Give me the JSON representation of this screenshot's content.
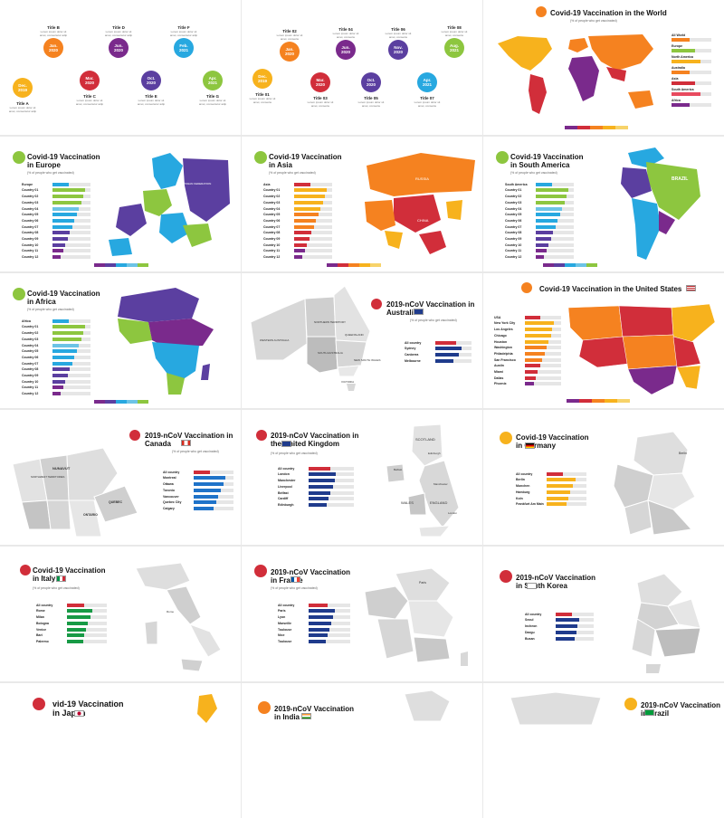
{
  "timeline1": {
    "nodes": [
      {
        "label": "Dec.\n2019",
        "color": "#f7b21d",
        "title": "Title A",
        "desc": "Lorem ipsum dolor sit\namet, consectetur adip"
      },
      {
        "label": "Jan.\n2020",
        "color": "#f58220",
        "title": "Title B",
        "desc": "Lorem ipsum dolor sit\namet, consectetur adip"
      },
      {
        "label": "Mar.\n2020",
        "color": "#d12e3a",
        "title": "Title C",
        "desc": "Lorem ipsum dolor sit\namet, consectetur adip"
      },
      {
        "label": "Jun.\n2020",
        "color": "#7a2a8c",
        "title": "Title D",
        "desc": "Lorem ipsum dolor sit\namet, consectetur adip"
      },
      {
        "label": "Oct.\n2020",
        "color": "#5b3fa0",
        "title": "Title E",
        "desc": "Lorem ipsum dolor sit\namet, consectetur adip"
      },
      {
        "label": "Feb.\n2021",
        "color": "#27a8e0",
        "title": "Title F",
        "desc": "Lorem ipsum dolor sit\namet, consectetur adip"
      },
      {
        "label": "Apr.\n2021",
        "color": "#8dc63f",
        "title": "Title G",
        "desc": "Lorem ipsum dolor sit\namet, consectetur adip"
      }
    ]
  },
  "timeline2": {
    "nodes": [
      {
        "label": "Dec.\n2019",
        "color": "#f7b21d",
        "title": "Title 01",
        "desc": "Lorem ipsum dolor sit\namet, consecte"
      },
      {
        "label": "Jan.\n2020",
        "color": "#f58220",
        "title": "Title 02",
        "desc": "Lorem ipsum dolor sit\namet, consecte"
      },
      {
        "label": "Mar.\n2020",
        "color": "#d12e3a",
        "title": "Title 03",
        "desc": "Lorem ipsum dolor sit\namet, consecte"
      },
      {
        "label": "Jun.\n2020",
        "color": "#7a2a8c",
        "title": "Title 04",
        "desc": "Lorem ipsum dolor sit\namet, consecte"
      },
      {
        "label": "Oct.\n2020",
        "color": "#5b3fa0",
        "title": "Title 05",
        "desc": "Lorem ipsum dolor sit\namet, consecte"
      },
      {
        "label": "Nov.\n2020",
        "color": "#5b3fa0",
        "title": "Title 06",
        "desc": "Lorem ipsum dolor sit\namet, consecte"
      },
      {
        "label": "Apr.\n2021",
        "color": "#27a8e0",
        "title": "Title 07",
        "desc": "Lorem ipsum dolor sit\namet, consecte"
      },
      {
        "label": "Aug.\n2021",
        "color": "#8dc63f",
        "title": "Title 08",
        "desc": "Lorem ipsum dolor sit\namet, consecte"
      }
    ]
  },
  "world": {
    "title": "Covid-19 Vaccination in the World",
    "subtitle": "(% of people who get vaccinated)",
    "regions": [
      "All World",
      "Europe",
      "North America",
      "Australia",
      "Asia",
      "South America",
      "Africa"
    ],
    "region_colors": [
      "#f58220",
      "#8dc63f",
      "#f7b21d",
      "#f58220",
      "#d12e3a",
      "#e84a5f",
      "#7a2a8c"
    ],
    "legend": [
      "0 - 25",
      "25 - 50",
      "50 - 75",
      "75 - 85"
    ]
  },
  "europe": {
    "title": "Covid-19 Vaccination\nin Europe",
    "subtitle": "(% of people who get vaccinated)",
    "rows": [
      "Europe",
      "Country 01",
      "Country 02",
      "Country 03",
      "Country 04",
      "Country 05",
      "Country 06",
      "Country 07",
      "Country 08",
      "Country 09",
      "Country 10",
      "Country 11",
      "Country 12"
    ],
    "map_labels": [
      "RUSSIAN FEDERATION"
    ]
  },
  "asia": {
    "title": "Covid-19 Vaccination\nin Asia",
    "subtitle": "(% of people who get vaccinated)",
    "rows": [
      "Asia",
      "Country 01",
      "Country 02",
      "Country 03",
      "Country 04",
      "Country 05",
      "Country 06",
      "Country 07",
      "Country 08",
      "Country 09",
      "Country 10",
      "Country 11",
      "Country 12"
    ],
    "map_labels": [
      "RUSSIA",
      "CHINA"
    ]
  },
  "south_america": {
    "title": "Covid-19 Vaccination\nin South America",
    "subtitle": "(% of people who get vaccinated)",
    "rows": [
      "South America",
      "Country 01",
      "Country 02",
      "Country 03",
      "Country 04",
      "Country 05",
      "Country 06",
      "Country 07",
      "Country 08",
      "Country 09",
      "Country 10",
      "Country 11",
      "Country 12"
    ],
    "map_labels": [
      "BRAZIL"
    ]
  },
  "africa": {
    "title": "Covid-19 Vaccination\nin Africa",
    "subtitle": "(% of people who get vaccinated)",
    "rows": [
      "Africa",
      "Country 01",
      "Country 02",
      "Country 03",
      "Country 04",
      "Country 05",
      "Country 06",
      "Country 07",
      "Country 08",
      "Country 09",
      "Country 10",
      "Country 11",
      "Country 12"
    ]
  },
  "australia": {
    "title": "2019-nCoV Vaccination in\nAustralia",
    "subtitle": "(% of people who get vaccinated)",
    "rows": [
      "All country",
      "Sydney",
      "Canberra",
      "Melbourne"
    ],
    "map_labels": [
      "NORTHERN TERRITORY",
      "QUEENSLAND",
      "WESTERN AUSTRALIA",
      "SOUTH AUSTRALIA",
      "NEW SOUTH WALES",
      "VICTORIA"
    ]
  },
  "usa": {
    "title": "Covid-19 Vaccination in the United States",
    "rows": [
      "USA",
      "New York City",
      "Los Angeles",
      "Chicago",
      "Houston",
      "Washington",
      "Philadelphia",
      "San Francisco",
      "Austin",
      "Miami",
      "Dallas",
      "Phoenix"
    ]
  },
  "canada": {
    "title": "2019-nCoV Vaccination in\nCanada",
    "subtitle": "(% of people who get vaccinated)",
    "rows": [
      "All country",
      "Montreal",
      "Ottawa",
      "Toronto",
      "Vancouver",
      "Quebec City",
      "Calgary"
    ],
    "map_labels": [
      "NUNAVUT",
      "NORTHWEST TERRITORIES",
      "ONTARIO",
      "QUEBEC"
    ]
  },
  "uk": {
    "title": "2019-nCoV Vaccination in\nthe United Kingdom",
    "subtitle": "(% of people who get vaccinated)",
    "rows": [
      "All country",
      "London",
      "Manchester",
      "Liverpool",
      "Belfast",
      "Cardiff",
      "Edinburgh"
    ],
    "map_labels": [
      "SCOTLAND",
      "Edinburgh",
      "Belfast",
      "Manchester",
      "WALES",
      "ENGLAND",
      "London"
    ]
  },
  "germany": {
    "title": "Covid-19 Vaccination\nin Germany",
    "rows": [
      "All country",
      "Berlin",
      "Munchen",
      "Hamburg",
      "Koln",
      "Frankfurt Am Main"
    ],
    "map_labels": [
      "Berlin"
    ]
  },
  "italy": {
    "title": "Covid-19 Vaccination\nin Italy",
    "subtitle": "(% of people who get vaccinated)",
    "rows": [
      "All country",
      "Rome",
      "Milan",
      "Bologna",
      "Venice",
      "Bari",
      "Palermo"
    ],
    "map_labels": [
      "Rome"
    ]
  },
  "france": {
    "title": "2019-nCoV Vaccination\nin France",
    "subtitle": "(% of people who get vaccinated)",
    "rows": [
      "All country",
      "Paris",
      "Lyon",
      "Marseille",
      "Toulouse",
      "Nice",
      "Toulouse"
    ],
    "map_labels": [
      "Paris"
    ]
  },
  "korea": {
    "title": "2019-nCoV Vaccination\nin South Korea",
    "rows": [
      "All country",
      "Seoul",
      "Incheon",
      "Daegu",
      "Busan"
    ]
  },
  "japan": {
    "title": "vid-19 Vaccination\nin Japan"
  },
  "india": {
    "title": "2019-nCoV Vaccination\nin India"
  },
  "brazil": {
    "title": "2019-nCoV Vaccination\nin Brazil"
  }
}
